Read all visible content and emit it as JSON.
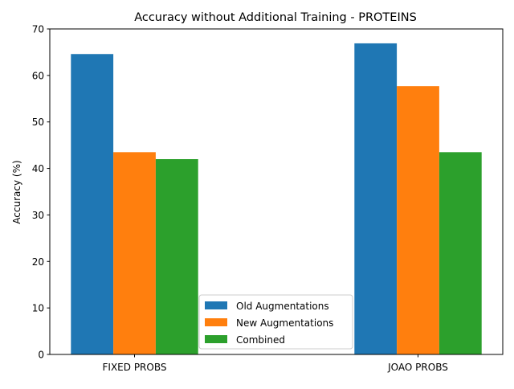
{
  "chart_data": {
    "type": "bar",
    "title": "Accuracy without Additional Training - PROTEINS",
    "xlabel": "",
    "ylabel": "Accuracy (%)",
    "categories": [
      "FIXED PROBS",
      "JOAO PROBS"
    ],
    "series": [
      {
        "name": "Old Augmentations",
        "values": [
          64.6,
          66.9
        ],
        "color": "#1f77b4"
      },
      {
        "name": "New Augmentations",
        "values": [
          43.5,
          57.7
        ],
        "color": "#ff7f0e"
      },
      {
        "name": "Combined",
        "values": [
          42.0,
          43.5
        ],
        "color": "#2ca02c"
      }
    ],
    "ylim": [
      0,
      70
    ],
    "yticks": [
      0,
      10,
      20,
      30,
      40,
      50,
      60,
      70
    ],
    "grid": false,
    "legend_position": "lower center"
  }
}
